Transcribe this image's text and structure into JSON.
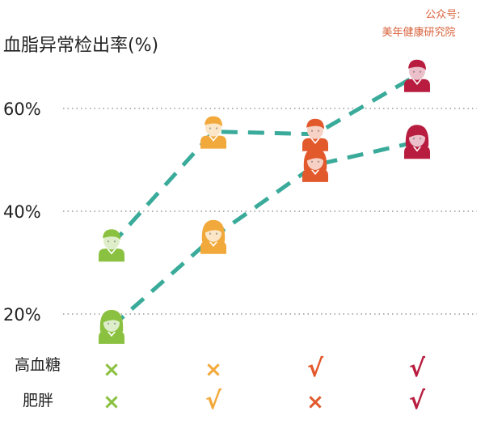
{
  "chart_data": {
    "type": "line",
    "ylabel": "血脂异常检出率(%)",
    "ylim": [
      15,
      65
    ],
    "yticks": [
      {
        "value": 20,
        "label": "20%"
      },
      {
        "value": 40,
        "label": "40%"
      },
      {
        "value": 60,
        "label": "60%"
      }
    ],
    "grid": true,
    "line_color": "#3aab9a",
    "groups": [
      {
        "high_blood_sugar": "×",
        "obesity": "×",
        "color": "#8bc140"
      },
      {
        "high_blood_sugar": "×",
        "obesity": "√",
        "color": "#f2a93b"
      },
      {
        "high_blood_sugar": "√",
        "obesity": "×",
        "color": "#e2592c"
      },
      {
        "high_blood_sugar": "√",
        "obesity": "√",
        "color": "#b81d3f"
      }
    ],
    "series": [
      {
        "icon": "male-icon",
        "values": [
          33.5,
          55.5,
          55.0,
          66.5
        ]
      },
      {
        "icon": "female-icon",
        "values": [
          17.5,
          35.0,
          49.0,
          53.5
        ]
      }
    ],
    "row_labels": {
      "high_blood_sugar": "高血糖",
      "obesity": "肥胖"
    }
  },
  "watermark": {
    "line1": "公众号:",
    "line2": "美年健康研究院"
  }
}
